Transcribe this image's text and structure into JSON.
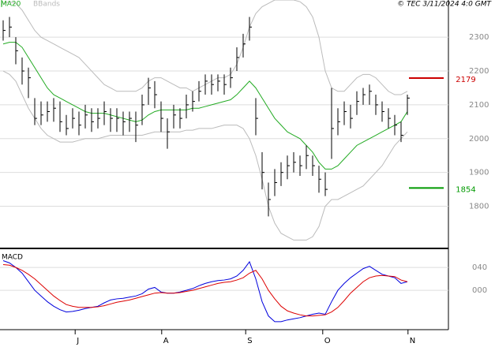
{
  "chart_data": {
    "type": "ohlc",
    "title": "© TEC 3/11/2024 4:0 GMT",
    "x": [
      0,
      1,
      2,
      3,
      4,
      5,
      6,
      7,
      8,
      9,
      10,
      11,
      12,
      13,
      14,
      15,
      16,
      17,
      18,
      19,
      20,
      21,
      22,
      23,
      24,
      25,
      26,
      27,
      28,
      29,
      30,
      31,
      32,
      33,
      34,
      35,
      36,
      37,
      38,
      39,
      40,
      41,
      42,
      43,
      44,
      45,
      46,
      47,
      48,
      49,
      50,
      51,
      52,
      53,
      54,
      55,
      56,
      57,
      58,
      59,
      60,
      61,
      62,
      63,
      64
    ],
    "xlim": [
      -0.5,
      70.5
    ],
    "xticks": [
      {
        "value": 11.4,
        "label": "J"
      },
      {
        "value": 25.1,
        "label": "A"
      },
      {
        "value": 38.4,
        "label": "S"
      },
      {
        "value": 50.6,
        "label": "O"
      },
      {
        "value": 64.1,
        "label": "N"
      }
    ],
    "ylim": [
      1680,
      2410
    ],
    "yticks": [
      1800,
      1900,
      2000,
      2100,
      2200,
      2300
    ],
    "grid": true,
    "color": "#000000",
    "high": [
      2350,
      2360,
      2300,
      2240,
      2210,
      2120,
      2110,
      2110,
      2120,
      2110,
      2070,
      2090,
      2080,
      2100,
      2090,
      2090,
      2110,
      2090,
      2090,
      2080,
      2080,
      2080,
      2130,
      2180,
      2170,
      2110,
      2060,
      2100,
      2090,
      2130,
      2140,
      2170,
      2190,
      2190,
      2190,
      2190,
      2210,
      2270,
      2310,
      2360,
      2120,
      1960,
      1870,
      1910,
      1930,
      1950,
      1960,
      1950,
      1980,
      1950,
      1920,
      1900,
      2150,
      2090,
      2110,
      2100,
      2140,
      2150,
      2160,
      2130,
      2110,
      2090,
      2070,
      2050,
      2130
    ],
    "low": [
      2290,
      2300,
      2220,
      2160,
      2120,
      2040,
      2040,
      2050,
      2050,
      2020,
      2010,
      2030,
      2010,
      2030,
      2020,
      2030,
      2040,
      2020,
      2020,
      2010,
      2020,
      1990,
      2040,
      2100,
      2090,
      2020,
      1970,
      2030,
      2030,
      2060,
      2080,
      2110,
      2130,
      2130,
      2140,
      2130,
      2150,
      2200,
      2240,
      2290,
      2010,
      1850,
      1770,
      1830,
      1860,
      1880,
      1900,
      1890,
      1910,
      1890,
      1840,
      1830,
      1940,
      2010,
      2040,
      2030,
      2070,
      2100,
      2100,
      2070,
      2050,
      2030,
      2010,
      1990,
      2070
    ],
    "close": [
      2320,
      2330,
      2260,
      2200,
      2180,
      2060,
      2070,
      2080,
      2090,
      2050,
      2030,
      2060,
      2040,
      2070,
      2050,
      2060,
      2080,
      2060,
      2060,
      2050,
      2060,
      2040,
      2100,
      2150,
      2130,
      2060,
      2020,
      2070,
      2060,
      2100,
      2110,
      2140,
      2170,
      2160,
      2170,
      2160,
      2180,
      2240,
      2280,
      2330,
      2060,
      1900,
      1820,
      1870,
      1900,
      1920,
      1930,
      1920,
      1950,
      1920,
      1880,
      1850,
      2030,
      2050,
      2080,
      2060,
      2110,
      2130,
      2140,
      2100,
      2080,
      2060,
      2040,
      2010,
      2120
    ],
    "ma": {
      "name": "MA20",
      "color": "#22aa22",
      "values": [
        2280,
        2285,
        2285,
        2270,
        2240,
        2210,
        2180,
        2150,
        2130,
        2120,
        2110,
        2100,
        2090,
        2080,
        2075,
        2075,
        2075,
        2070,
        2065,
        2060,
        2055,
        2050,
        2055,
        2070,
        2080,
        2085,
        2085,
        2085,
        2085,
        2085,
        2090,
        2090,
        2095,
        2100,
        2105,
        2110,
        2115,
        2130,
        2150,
        2170,
        2150,
        2120,
        2090,
        2060,
        2040,
        2020,
        2010,
        2000,
        1980,
        1960,
        1930,
        1910,
        1910,
        1920,
        1940,
        1960,
        1980,
        1990,
        2000,
        2010,
        2020,
        2030,
        2040,
        2050,
        2080
      ]
    },
    "bbands": {
      "name": "BBands",
      "color": "#bbbbbb",
      "upper": [
        2400,
        2405,
        2400,
        2380,
        2350,
        2320,
        2300,
        2290,
        2280,
        2270,
        2260,
        2250,
        2240,
        2220,
        2200,
        2180,
        2160,
        2150,
        2140,
        2140,
        2140,
        2140,
        2150,
        2170,
        2180,
        2180,
        2170,
        2160,
        2150,
        2150,
        2140,
        2150,
        2160,
        2170,
        2180,
        2180,
        2190,
        2220,
        2270,
        2330,
        2370,
        2390,
        2400,
        2410,
        2410,
        2410,
        2410,
        2405,
        2390,
        2360,
        2300,
        2200,
        2150,
        2140,
        2140,
        2160,
        2180,
        2190,
        2190,
        2180,
        2160,
        2140,
        2130,
        2130,
        2140
      ],
      "lower": [
        2200,
        2190,
        2170,
        2130,
        2090,
        2060,
        2030,
        2010,
        2000,
        1990,
        1990,
        1990,
        1995,
        2000,
        2000,
        2000,
        2005,
        2010,
        2010,
        2010,
        2010,
        2010,
        2010,
        2015,
        2020,
        2020,
        2020,
        2020,
        2020,
        2025,
        2025,
        2030,
        2030,
        2030,
        2035,
        2040,
        2040,
        2040,
        2030,
        2000,
        1950,
        1880,
        1800,
        1750,
        1720,
        1710,
        1700,
        1700,
        1700,
        1710,
        1740,
        1800,
        1820,
        1820,
        1830,
        1840,
        1850,
        1860,
        1880,
        1900,
        1920,
        1950,
        1980,
        2000,
        2020
      ]
    },
    "levels": [
      {
        "value": 2179,
        "label": "2179",
        "color": "#cc0000"
      },
      {
        "value": 1854,
        "label": "1854",
        "color": "#009900"
      }
    ],
    "macd": {
      "title": "MACD",
      "ylim": [
        -69,
        72
      ],
      "yticks": [
        {
          "value": 40,
          "label": "040"
        },
        {
          "value": 0,
          "label": "000"
        }
      ],
      "series": [
        {
          "color": "#0000dd",
          "values": [
            52,
            48,
            40,
            30,
            15,
            0,
            -10,
            -20,
            -28,
            -34,
            -38,
            -37,
            -35,
            -32,
            -30,
            -28,
            -22,
            -17,
            -15,
            -14,
            -12,
            -10,
            -6,
            2,
            5,
            -3,
            -5,
            -5,
            -3,
            0,
            3,
            8,
            12,
            15,
            17,
            18,
            20,
            25,
            35,
            50,
            20,
            -20,
            -45,
            -55,
            -55,
            -52,
            -50,
            -48,
            -45,
            -42,
            -40,
            -42,
            -20,
            0,
            12,
            22,
            30,
            38,
            42,
            35,
            28,
            25,
            22,
            12,
            15
          ]
        },
        {
          "color": "#dd0000",
          "values": [
            45,
            44,
            40,
            35,
            28,
            20,
            10,
            0,
            -10,
            -18,
            -25,
            -28,
            -30,
            -30,
            -30,
            -29,
            -27,
            -24,
            -21,
            -19,
            -17,
            -14,
            -11,
            -8,
            -5,
            -4,
            -5,
            -5,
            -4,
            -2,
            0,
            3,
            6,
            9,
            12,
            14,
            15,
            18,
            22,
            30,
            35,
            20,
            0,
            -15,
            -28,
            -36,
            -40,
            -43,
            -45,
            -45,
            -44,
            -43,
            -38,
            -30,
            -18,
            -5,
            5,
            15,
            22,
            25,
            26,
            25,
            24,
            18,
            15
          ]
        }
      ]
    }
  }
}
